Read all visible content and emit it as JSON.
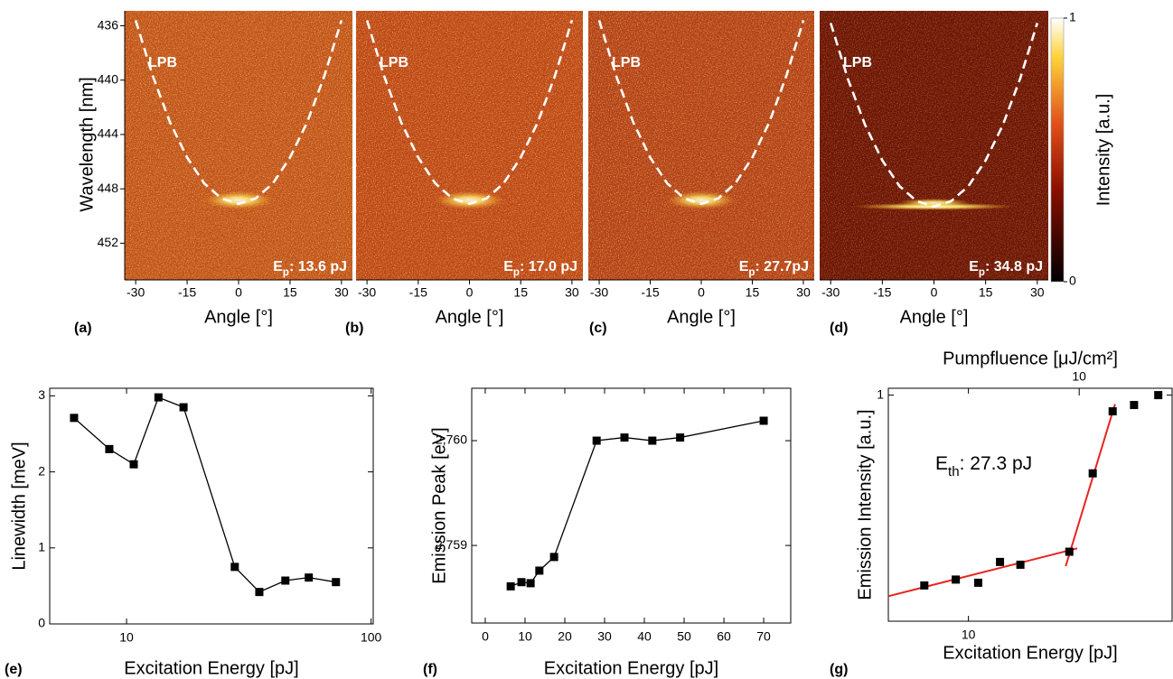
{
  "chart_data": [
    {
      "type": "heatmap",
      "panel": "(a)",
      "color": "#c9581e",
      "annotations": [
        "LPB"
      ],
      "energy": {
        "symbol": "E",
        "subscript": "p",
        "text": ": 13.6 pJ"
      },
      "xlabel": "Angle [°]",
      "ylabel": "Wavelength [nm]",
      "xlim": [
        -33.2,
        33.2
      ],
      "ylim": [
        454.7,
        434.9
      ],
      "xticks": [
        -30,
        -15,
        0,
        15,
        30
      ],
      "yticks": [
        436,
        440,
        444,
        448,
        452
      ],
      "lpb": {
        "x": [
          -30,
          -25,
          -20,
          -15,
          -10,
          -5,
          0,
          5,
          10,
          15,
          20,
          25,
          30
        ],
        "y": [
          435.6,
          439.7,
          443.1,
          445.7,
          447.6,
          448.7,
          449.1,
          448.7,
          447.6,
          445.7,
          443.1,
          439.7,
          435.6
        ]
      }
    },
    {
      "type": "heatmap",
      "panel": "(b)",
      "color": "#c44a1a",
      "annotations": [
        "LPB"
      ],
      "energy": {
        "symbol": "E",
        "subscript": "p",
        "text": ": 17.0 pJ"
      },
      "xlabel": "Angle [°]",
      "xlim": [
        -33.2,
        33.2
      ],
      "ylim": [
        454.7,
        434.9
      ],
      "xticks": [
        -30,
        -15,
        0,
        15,
        30
      ],
      "lpb": {
        "x": [
          -30,
          -25,
          -20,
          -15,
          -10,
          -5,
          0,
          5,
          10,
          15,
          20,
          25,
          30
        ],
        "y": [
          435.6,
          439.7,
          443.1,
          445.7,
          447.6,
          448.7,
          449.1,
          448.7,
          447.6,
          445.7,
          443.1,
          439.7,
          435.6
        ]
      }
    },
    {
      "type": "heatmap",
      "panel": "(c)",
      "color": "#b9431a",
      "annotations": [
        "LPB"
      ],
      "energy": {
        "symbol": "E",
        "subscript": "p",
        "text": ": 27.7pJ"
      },
      "xlabel": "Angle [°]",
      "xlim": [
        -33.2,
        33.2
      ],
      "ylim": [
        454.7,
        434.9
      ],
      "xticks": [
        -30,
        -15,
        0,
        15,
        30
      ],
      "lpb": {
        "x": [
          -30,
          -25,
          -20,
          -15,
          -10,
          -5,
          0,
          5,
          10,
          15,
          20,
          25,
          30
        ],
        "y": [
          435.6,
          439.7,
          443.1,
          445.7,
          447.6,
          448.7,
          449.1,
          448.7,
          447.6,
          445.7,
          443.1,
          439.7,
          435.6
        ]
      }
    },
    {
      "type": "heatmap",
      "panel": "(d)",
      "color": "#6a1206",
      "annotations": [
        "LPB"
      ],
      "energy": {
        "symbol": "E",
        "subscript": "p",
        "text": ": 34.8 pJ"
      },
      "xlabel": "Angle [°]",
      "xlim": [
        -33.2,
        33.2
      ],
      "ylim": [
        454.7,
        434.9
      ],
      "xticks": [
        -30,
        -15,
        0,
        15,
        30
      ],
      "lpb": {
        "x": [
          -30,
          -25,
          -20,
          -15,
          -10,
          -5,
          0,
          5,
          10,
          15,
          20,
          25,
          30
        ],
        "y": [
          435.8,
          439.9,
          443.3,
          445.9,
          447.8,
          448.9,
          449.3,
          448.9,
          447.8,
          445.9,
          443.3,
          439.9,
          435.8
        ]
      },
      "colorbar": {
        "label": "Intensity [a.u.]",
        "lim": [
          0,
          1
        ],
        "ticks": [
          0,
          1
        ]
      }
    },
    {
      "type": "line",
      "panel": "(e)",
      "color": "#000000",
      "xlabel": "Excitation Energy [pJ]",
      "ylabel": "Linewidth [meV]",
      "xscale": "log",
      "xlim": [
        4.85,
        102
      ],
      "xticks": [
        10,
        100
      ],
      "ylim": [
        0,
        3.1
      ],
      "yticks": [
        0,
        1,
        2,
        3
      ],
      "x": [
        6.1,
        8.5,
        10.7,
        13.5,
        17.1,
        27.7,
        34.9,
        44.6,
        55.6,
        71.8
      ],
      "values": [
        2.71,
        2.3,
        2.1,
        2.98,
        2.85,
        0.75,
        0.42,
        0.57,
        0.61,
        0.55
      ]
    },
    {
      "type": "line",
      "panel": "(f)",
      "color": "#000000",
      "xlabel": "Excitation Energy [pJ]",
      "ylabel": "Emission Peak [eV]",
      "xlim": [
        -3.4,
        76.8
      ],
      "xticks": [
        0,
        10,
        20,
        30,
        40,
        50,
        60,
        70
      ],
      "ylim": [
        2.75826,
        2.7605
      ],
      "yticks": [
        {
          "value": 2.759,
          "label": "2,759"
        },
        {
          "value": 2.76,
          "label": "2,760"
        }
      ],
      "x": [
        6.4,
        9.1,
        11.4,
        13.6,
        17.3,
        28,
        35,
        42,
        49,
        70
      ],
      "values": [
        2.75861,
        2.75865,
        2.75864,
        2.75876,
        2.75889,
        2.76,
        2.76003,
        2.76,
        2.76003,
        2.76019
      ]
    },
    {
      "type": "scatter",
      "panel": "(g)",
      "color": "#000000",
      "xlabel": "Excitation Energy [pJ]",
      "ylabel": "Emission Intensity [a.u.]",
      "x2label": "Pumpfluence [μJ/cm²]",
      "x2lim": [
        1.31,
        26.9
      ],
      "x2ticks": [
        10
      ],
      "xscale": "log",
      "yscale": "log",
      "xlim": [
        4.26,
        87.6
      ],
      "xticks": [
        10
      ],
      "ylim": [
        0.2,
        1.05
      ],
      "yticks": [
        1
      ],
      "x": [
        6.25,
        8.74,
        11.1,
        14.0,
        17.4,
        29.3,
        37.6,
        46.5,
        58.4,
        75.6
      ],
      "values": [
        0.258,
        0.269,
        0.263,
        0.305,
        0.299,
        0.328,
        0.573,
        0.891,
        0.932,
        1.0
      ],
      "annotation": {
        "symbol": "E",
        "subscript": "th",
        "text": ": 27.3 pJ"
      },
      "fits": [
        {
          "color": "#e8231f",
          "x": [
            4.26,
            31.9
          ],
          "y": [
            0.239,
            0.336
          ]
        },
        {
          "color": "#e8231f",
          "x": [
            28.2,
            47.7
          ],
          "y": [
            0.296,
            0.938
          ]
        }
      ]
    }
  ]
}
